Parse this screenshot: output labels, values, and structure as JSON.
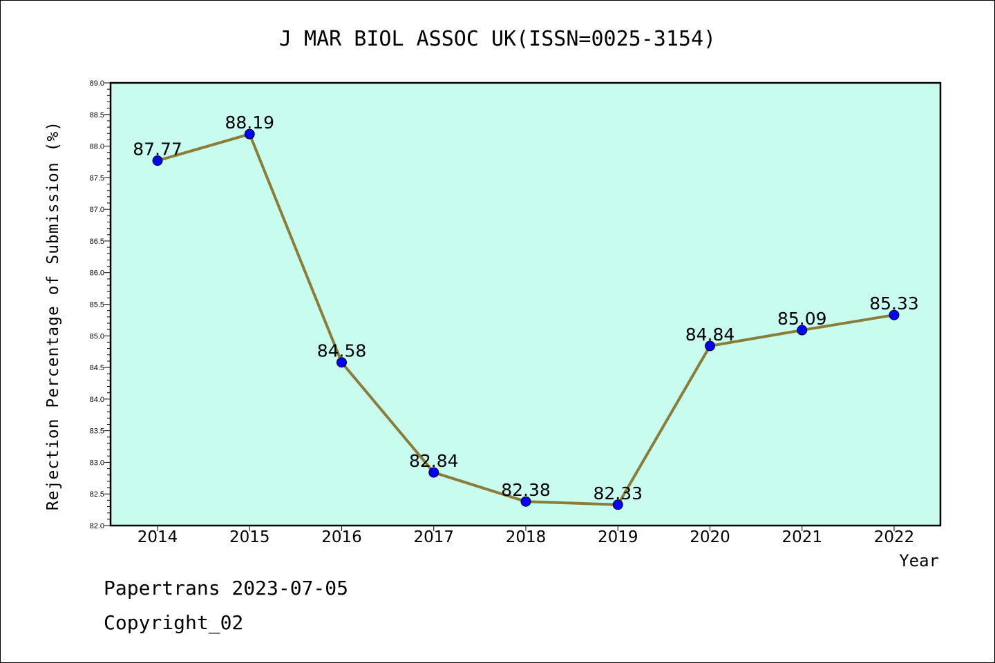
{
  "chart_data": {
    "type": "line",
    "title": "J MAR BIOL ASSOC UK(ISSN=0025-3154)",
    "xlabel": "Year",
    "ylabel": "Rejection Percentage of Submission (%)",
    "categories": [
      "2014",
      "2015",
      "2016",
      "2017",
      "2018",
      "2019",
      "2020",
      "2021",
      "2022"
    ],
    "values": [
      87.77,
      88.19,
      84.58,
      82.84,
      82.38,
      82.33,
      84.84,
      85.09,
      85.33
    ],
    "data_labels": [
      "87.77",
      "88.19",
      "84.58",
      "82.84",
      "82.38",
      "82.33",
      "84.84",
      "85.09",
      "85.33"
    ],
    "ylim": [
      82.0,
      89.0
    ],
    "yticks": [
      "82.0",
      "82.5",
      "83.0",
      "83.5",
      "84.0",
      "84.5",
      "85.0",
      "85.5",
      "86.0",
      "86.5",
      "87.0",
      "87.5",
      "88.0",
      "88.5",
      "89.0"
    ],
    "grid": false,
    "colors": {
      "plot_background": "#c8fcee",
      "line": "#8b7d38",
      "marker": "#0000ff"
    }
  },
  "footer": {
    "line1": "Papertrans 2023-07-05",
    "line2": "Copyright_02"
  }
}
